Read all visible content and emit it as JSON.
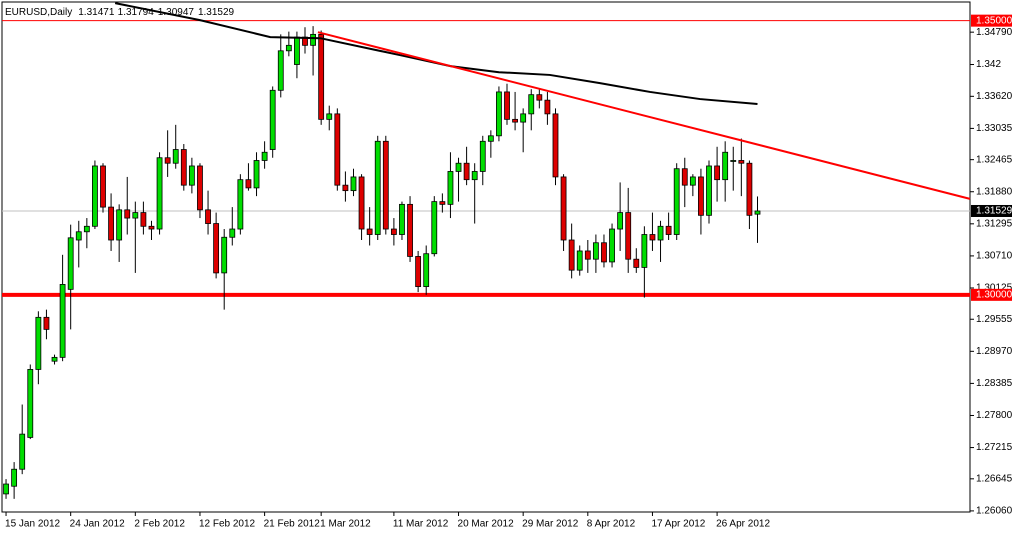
{
  "chart_data": {
    "type": "candlestick",
    "title": "EURUSD,Daily",
    "up_color": "#00dd00",
    "down_color": "#dd0000",
    "categories": [
      "15 Jan 2012",
      null,
      null,
      null,
      null,
      null,
      null,
      null,
      "24 Jan 2012",
      null,
      null,
      null,
      null,
      null,
      null,
      null,
      "2 Feb 2012",
      null,
      null,
      null,
      null,
      null,
      null,
      null,
      "12 Feb 2012",
      null,
      null,
      null,
      null,
      null,
      null,
      null,
      "21 Feb 2012",
      null,
      null,
      null,
      null,
      null,
      null,
      "1 Mar 2012",
      null,
      null,
      null,
      null,
      null,
      null,
      null,
      null,
      "11 Mar 2012",
      null,
      null,
      null,
      null,
      null,
      null,
      null,
      "20 Mar 2012",
      null,
      null,
      null,
      null,
      null,
      null,
      null,
      "29 Mar 2012",
      null,
      null,
      null,
      null,
      null,
      null,
      null,
      "8 Apr 2012",
      null,
      null,
      null,
      null,
      null,
      null,
      null,
      "17 Apr 2012",
      null,
      null,
      null,
      null,
      null,
      null,
      null,
      "26 Apr 2012",
      null,
      null,
      null,
      null,
      null
    ],
    "open": [
      1.2637,
      1.2651,
      1.2682,
      1.274,
      1.2864,
      1.2959,
      1.2879,
      1.2886,
      1.301,
      1.31,
      1.3115,
      1.3125,
      1.3235,
      1.316,
      1.31,
      1.3155,
      1.314,
      1.315,
      1.3125,
      1.312,
      1.325,
      1.324,
      1.3265,
      1.32,
      1.3235,
      1.3155,
      1.313,
      1.304,
      1.3105,
      1.312,
      1.321,
      1.3195,
      1.3245,
      1.3265,
      1.3373,
      1.3445,
      1.342,
      1.347,
      1.3455,
      1.3475,
      1.332,
      1.333,
      1.32,
      1.319,
      1.3215,
      1.312,
      1.311,
      1.328,
      1.312,
      1.311,
      1.3165,
      1.307,
      1.3015,
      1.3075,
      1.317,
      1.3165,
      1.3225,
      1.324,
      1.321,
      1.3225,
      1.328,
      1.329,
      1.337,
      1.332,
      1.3315,
      1.333,
      1.3365,
      1.3355,
      1.333,
      1.3215,
      1.31,
      1.3045,
      1.308,
      1.3065,
      1.3095,
      1.306,
      1.312,
      1.315,
      1.3065,
      1.305,
      1.311,
      1.31,
      1.3125,
      1.311,
      1.323,
      1.32,
      1.3215,
      1.3145,
      1.3235,
      1.321,
      1.3245,
      1.3245,
      1.324,
      1.31471
    ],
    "high": [
      1.2664,
      1.2695,
      1.28,
      1.2873,
      1.297,
      1.2973,
      1.2891,
      1.3073,
      1.3128,
      1.3135,
      1.314,
      1.3245,
      1.324,
      1.3185,
      1.3165,
      1.3215,
      1.317,
      1.317,
      1.3135,
      1.326,
      1.33,
      1.331,
      1.3275,
      1.325,
      1.324,
      1.319,
      1.315,
      1.312,
      1.316,
      1.322,
      1.324,
      1.326,
      1.328,
      1.338,
      1.3475,
      1.348,
      1.348,
      1.3488,
      1.349,
      1.3482,
      1.3345,
      1.334,
      1.3225,
      1.323,
      1.322,
      1.316,
      1.329,
      1.329,
      1.314,
      1.317,
      1.318,
      1.308,
      1.309,
      1.318,
      1.3185,
      1.326,
      1.325,
      1.327,
      1.324,
      1.329,
      1.33,
      1.338,
      1.3385,
      1.337,
      1.334,
      1.3375,
      1.3375,
      1.337,
      1.334,
      1.322,
      1.313,
      1.309,
      1.31,
      1.311,
      1.311,
      1.313,
      1.3205,
      1.3195,
      1.3085,
      1.3125,
      1.315,
      1.3135,
      1.315,
      1.324,
      1.325,
      1.322,
      1.323,
      1.3245,
      1.327,
      1.328,
      1.327,
      1.3285,
      1.3245,
      1.31794
    ],
    "low": [
      1.2628,
      1.2628,
      1.2673,
      1.2737,
      1.2837,
      1.2919,
      1.2873,
      1.2879,
      1.2937,
      1.305,
      1.3085,
      1.312,
      1.315,
      1.308,
      1.306,
      1.311,
      1.304,
      1.311,
      1.31,
      1.311,
      1.3215,
      1.323,
      1.319,
      1.3185,
      1.314,
      1.311,
      1.303,
      1.2973,
      1.309,
      1.311,
      1.319,
      1.318,
      1.323,
      1.325,
      1.336,
      1.3435,
      1.3395,
      1.344,
      1.34,
      1.331,
      1.33,
      1.319,
      1.317,
      1.318,
      1.31,
      1.309,
      1.31,
      1.311,
      1.309,
      1.31,
      1.306,
      1.3005,
      1.3,
      1.307,
      1.315,
      1.314,
      1.317,
      1.32,
      1.313,
      1.32,
      1.325,
      1.328,
      1.331,
      1.33,
      1.326,
      1.33,
      1.334,
      1.331,
      1.32,
      1.308,
      1.303,
      1.3035,
      1.304,
      1.304,
      1.305,
      1.305,
      1.308,
      1.304,
      1.304,
      1.2995,
      1.308,
      1.306,
      1.31,
      1.31,
      1.316,
      1.318,
      1.311,
      1.313,
      1.317,
      1.317,
      1.319,
      1.318,
      1.312,
      1.30947
    ],
    "close": [
      1.2655,
      1.2682,
      1.2746,
      1.2864,
      1.2959,
      1.2937,
      1.2886,
      1.3019,
      1.3104,
      1.3115,
      1.3125,
      1.3235,
      1.316,
      1.31,
      1.3155,
      1.314,
      1.315,
      1.3125,
      1.312,
      1.325,
      1.324,
      1.3265,
      1.32,
      1.3235,
      1.3155,
      1.313,
      1.304,
      1.3105,
      1.312,
      1.321,
      1.3195,
      1.3245,
      1.326,
      1.3373,
      1.3445,
      1.3455,
      1.347,
      1.3455,
      1.3475,
      1.332,
      1.333,
      1.32,
      1.319,
      1.3215,
      1.312,
      1.311,
      1.328,
      1.312,
      1.311,
      1.3165,
      1.307,
      1.3015,
      1.3075,
      1.317,
      1.3165,
      1.3225,
      1.324,
      1.321,
      1.3225,
      1.328,
      1.329,
      1.337,
      1.332,
      1.3315,
      1.333,
      1.3365,
      1.3355,
      1.333,
      1.3215,
      1.31,
      1.3045,
      1.308,
      1.3065,
      1.3095,
      1.306,
      1.312,
      1.315,
      1.3065,
      1.305,
      1.311,
      1.31,
      1.3125,
      1.311,
      1.323,
      1.32,
      1.3215,
      1.3145,
      1.3235,
      1.321,
      1.326,
      1.3245,
      1.324,
      1.3145,
      1.31529
    ],
    "moving_average": {
      "color": "#000000",
      "x": [
        13.5,
        24,
        32.7,
        38.9,
        48.8,
        55,
        61,
        67.3,
        73.5,
        79.7,
        85.9,
        93
      ],
      "values": [
        1.3532,
        1.3501,
        1.347,
        1.3468,
        1.3437,
        1.3417,
        1.3406,
        1.3401,
        1.3386,
        1.337,
        1.3357,
        1.3348
      ]
    },
    "trendline": {
      "color": "#ff0000",
      "x": [
        38.6,
        119.3
      ],
      "values": [
        1.3479,
        1.3175
      ]
    },
    "hlines": [
      {
        "value": 1.35,
        "label": "1.35000",
        "color": "#ff0000",
        "label_color": "#ff0000",
        "line_width": 1
      },
      {
        "value": 1.31529,
        "label": "1.31529",
        "color": "#c0c0c0",
        "label_color": "#000000",
        "line_width": 1
      },
      {
        "value": 1.3,
        "label": "1.30000",
        "color": "#ff0000",
        "label_color": "#ff0000",
        "line_width": 4
      }
    ],
    "xlim": [
      -0.5,
      119.3
    ],
    "ylim": [
      1.2604,
      1.3534
    ],
    "yticks": [
      {
        "value": 1.3479,
        "label": "1.34790"
      },
      1.342,
      {
        "value": 1.3362,
        "label": "1.33620"
      },
      1.33035,
      {
        "value": 1.32465,
        "label": "1.32465"
      },
      {
        "value": 1.3188,
        "label": "1.31880"
      },
      1.31295,
      {
        "value": 1.3071,
        "label": "1.30710"
      },
      1.30125,
      {
        "value": 1.29555,
        "label": "1.29555"
      },
      {
        "value": 1.2897,
        "label": "1.28970"
      },
      1.28385,
      {
        "value": 1.278,
        "label": "1.27800"
      },
      1.27215,
      1.26645,
      {
        "value": 1.2606,
        "label": "1.26060"
      }
    ]
  }
}
